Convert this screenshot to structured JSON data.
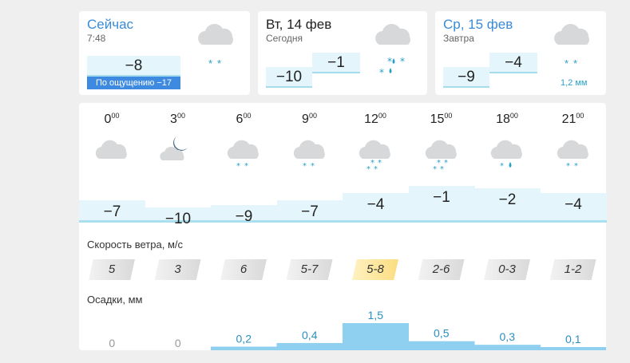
{
  "now": {
    "title": "Сейчас",
    "time": "7:48",
    "temp": "−8",
    "feels": "По ощущению −17",
    "icon": "cloud-snow-icon"
  },
  "today": {
    "title": "Вт, 14 фев",
    "sub": "Сегодня",
    "temp_min": "−10",
    "temp_max": "−1",
    "icon": "cloud-sleet-icon"
  },
  "tomorrow": {
    "title": "Ср, 15 фев",
    "sub": "Завтра",
    "temp_min": "−9",
    "temp_max": "−4",
    "precip": "1,2 мм",
    "icon": "cloud-snow-icon"
  },
  "hours": [
    {
      "h": "0",
      "m": "00",
      "icon": "cloud-icon",
      "temp": "−7",
      "wind": "5",
      "rain": "0"
    },
    {
      "h": "3",
      "m": "00",
      "icon": "moon-cloud-icon",
      "temp": "−10",
      "wind": "3",
      "rain": "0"
    },
    {
      "h": "6",
      "m": "00",
      "icon": "cloud-snow-icon",
      "temp": "−9",
      "wind": "6",
      "rain": "0,2"
    },
    {
      "h": "9",
      "m": "00",
      "icon": "cloud-snow-icon",
      "temp": "−7",
      "wind": "5-7",
      "rain": "0,4"
    },
    {
      "h": "12",
      "m": "00",
      "icon": "cloud-heavy-snow-icon",
      "temp": "−4",
      "wind": "5-8",
      "rain": "1,5"
    },
    {
      "h": "15",
      "m": "00",
      "icon": "cloud-heavy-snow-icon",
      "temp": "−1",
      "wind": "2-6",
      "rain": "0,5"
    },
    {
      "h": "18",
      "m": "00",
      "icon": "cloud-sleet-icon",
      "temp": "−2",
      "wind": "0-3",
      "rain": "0,3"
    },
    {
      "h": "21",
      "m": "00",
      "icon": "cloud-snow-icon",
      "temp": "−4",
      "wind": "1-2",
      "rain": "0,1"
    }
  ],
  "wind_label": "Скорость ветра, м/с",
  "rain_label": "Осадки, мм",
  "colors": {
    "accent_blue": "#3a8bd6",
    "temp_fill": "#e4f6fb",
    "temp_border": "#a9dfee",
    "rain_fill": "#8fd0f0",
    "wind_highlight": "#fbdd80",
    "feels_badge": "#3e8ae0"
  }
}
